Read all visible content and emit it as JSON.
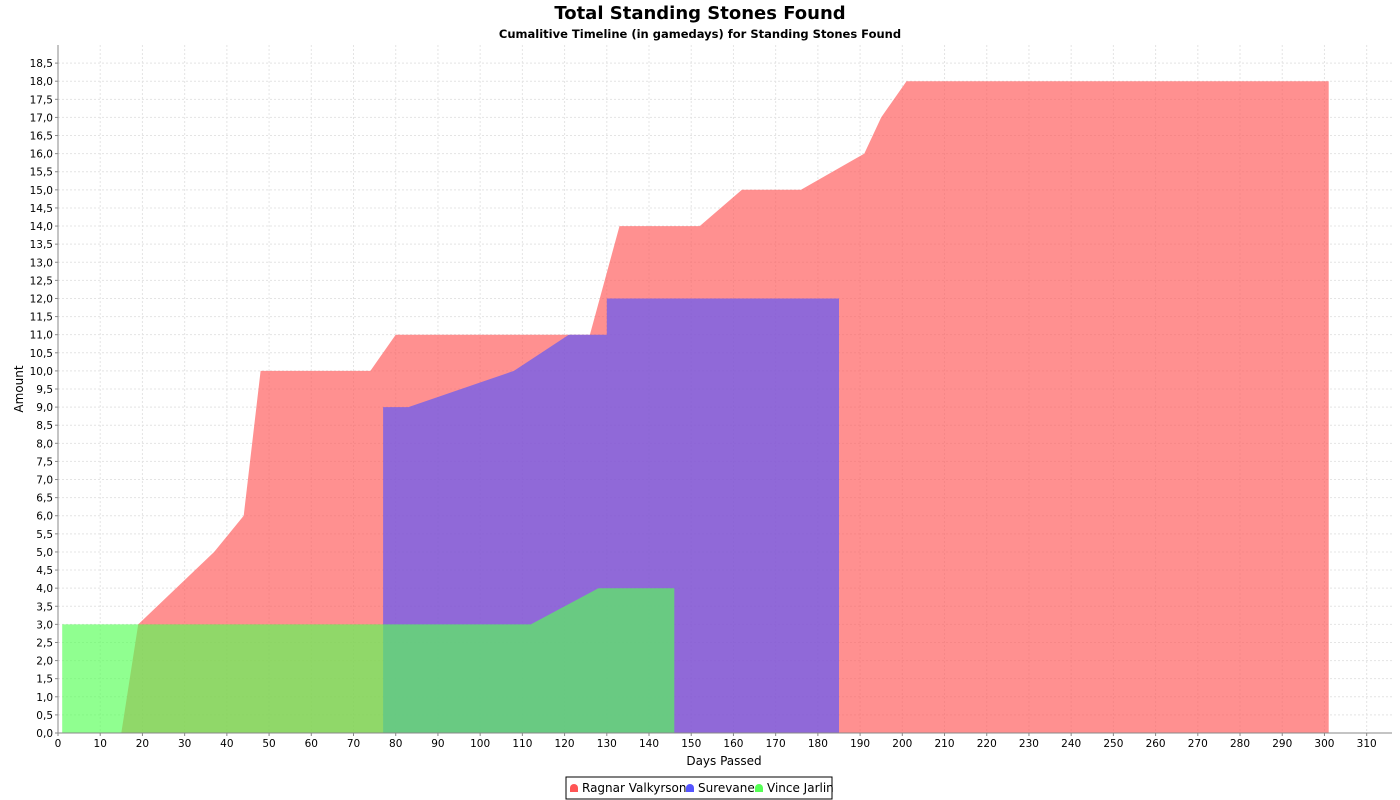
{
  "chart_data": {
    "type": "area",
    "title": "Total Standing Stones Found",
    "subtitle": "Cumalitive Timeline (in gamedays) for Standing Stones Found",
    "xlabel": "Days Passed",
    "ylabel": "Amount",
    "xlim": [
      0,
      316
    ],
    "ylim": [
      0,
      19
    ],
    "x_ticks": [
      0,
      10,
      20,
      30,
      40,
      50,
      60,
      70,
      80,
      90,
      100,
      110,
      120,
      130,
      140,
      150,
      160,
      170,
      180,
      190,
      200,
      210,
      220,
      230,
      240,
      250,
      260,
      270,
      280,
      290,
      300,
      310
    ],
    "y_ticks": [
      "0,0",
      "0,5",
      "1,0",
      "1,5",
      "2,0",
      "2,5",
      "3,0",
      "3,5",
      "4,0",
      "4,5",
      "5,0",
      "5,5",
      "6,0",
      "6,5",
      "7,0",
      "7,5",
      "8,0",
      "8,5",
      "9,0",
      "9,5",
      "10,0",
      "10,5",
      "11,0",
      "11,5",
      "12,0",
      "12,5",
      "13,0",
      "13,5",
      "14,0",
      "14,5",
      "15,0",
      "15,5",
      "16,0",
      "16,5",
      "17,0",
      "17,5",
      "18,0",
      "18,5"
    ],
    "grid": true,
    "legend_position": "bottom-center",
    "series": [
      {
        "name": "Ragnar Valkyrson",
        "color": "#ff5555",
        "points": [
          [
            15,
            0
          ],
          [
            19,
            3
          ],
          [
            37,
            5
          ],
          [
            44,
            6
          ],
          [
            48,
            10
          ],
          [
            74,
            10
          ],
          [
            80,
            11
          ],
          [
            126,
            11
          ],
          [
            133,
            14
          ],
          [
            152,
            14
          ],
          [
            162,
            15
          ],
          [
            176,
            15
          ],
          [
            191,
            16
          ],
          [
            195,
            17
          ],
          [
            201,
            18
          ],
          [
            301,
            18
          ],
          [
            301,
            0
          ]
        ]
      },
      {
        "name": "Surevane",
        "color": "#5555ff",
        "points": [
          [
            77,
            0
          ],
          [
            77,
            9
          ],
          [
            83,
            9
          ],
          [
            108,
            10
          ],
          [
            121,
            11
          ],
          [
            130,
            11
          ],
          [
            130,
            12
          ],
          [
            185,
            12
          ],
          [
            185,
            0
          ]
        ]
      },
      {
        "name": "Vince Jarlin",
        "color": "#55ff55",
        "points": [
          [
            1,
            0
          ],
          [
            1,
            3
          ],
          [
            112,
            3
          ],
          [
            128,
            4
          ],
          [
            146,
            4
          ],
          [
            146,
            0
          ]
        ]
      }
    ]
  }
}
